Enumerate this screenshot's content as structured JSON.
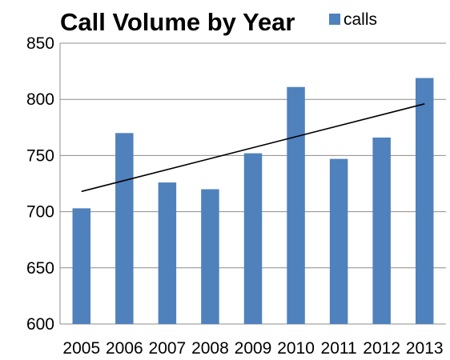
{
  "chart_data": {
    "type": "bar",
    "title": "Call Volume by Year",
    "xlabel": "",
    "ylabel": "",
    "categories": [
      "2005",
      "2006",
      "2007",
      "2008",
      "2009",
      "2010",
      "2011",
      "2012",
      "2013"
    ],
    "series": [
      {
        "name": "calls",
        "color": "#4f81bd",
        "values": [
          703,
          770,
          726,
          720,
          752,
          811,
          747,
          766,
          819
        ]
      }
    ],
    "ylim": [
      600,
      850
    ],
    "yticks": [
      "600",
      "650",
      "700",
      "750",
      "800",
      "850"
    ],
    "grid": true,
    "legend": "top-right",
    "trendline": {
      "type": "linear",
      "color": "#000000",
      "start_value": 718,
      "end_value": 796
    }
  }
}
